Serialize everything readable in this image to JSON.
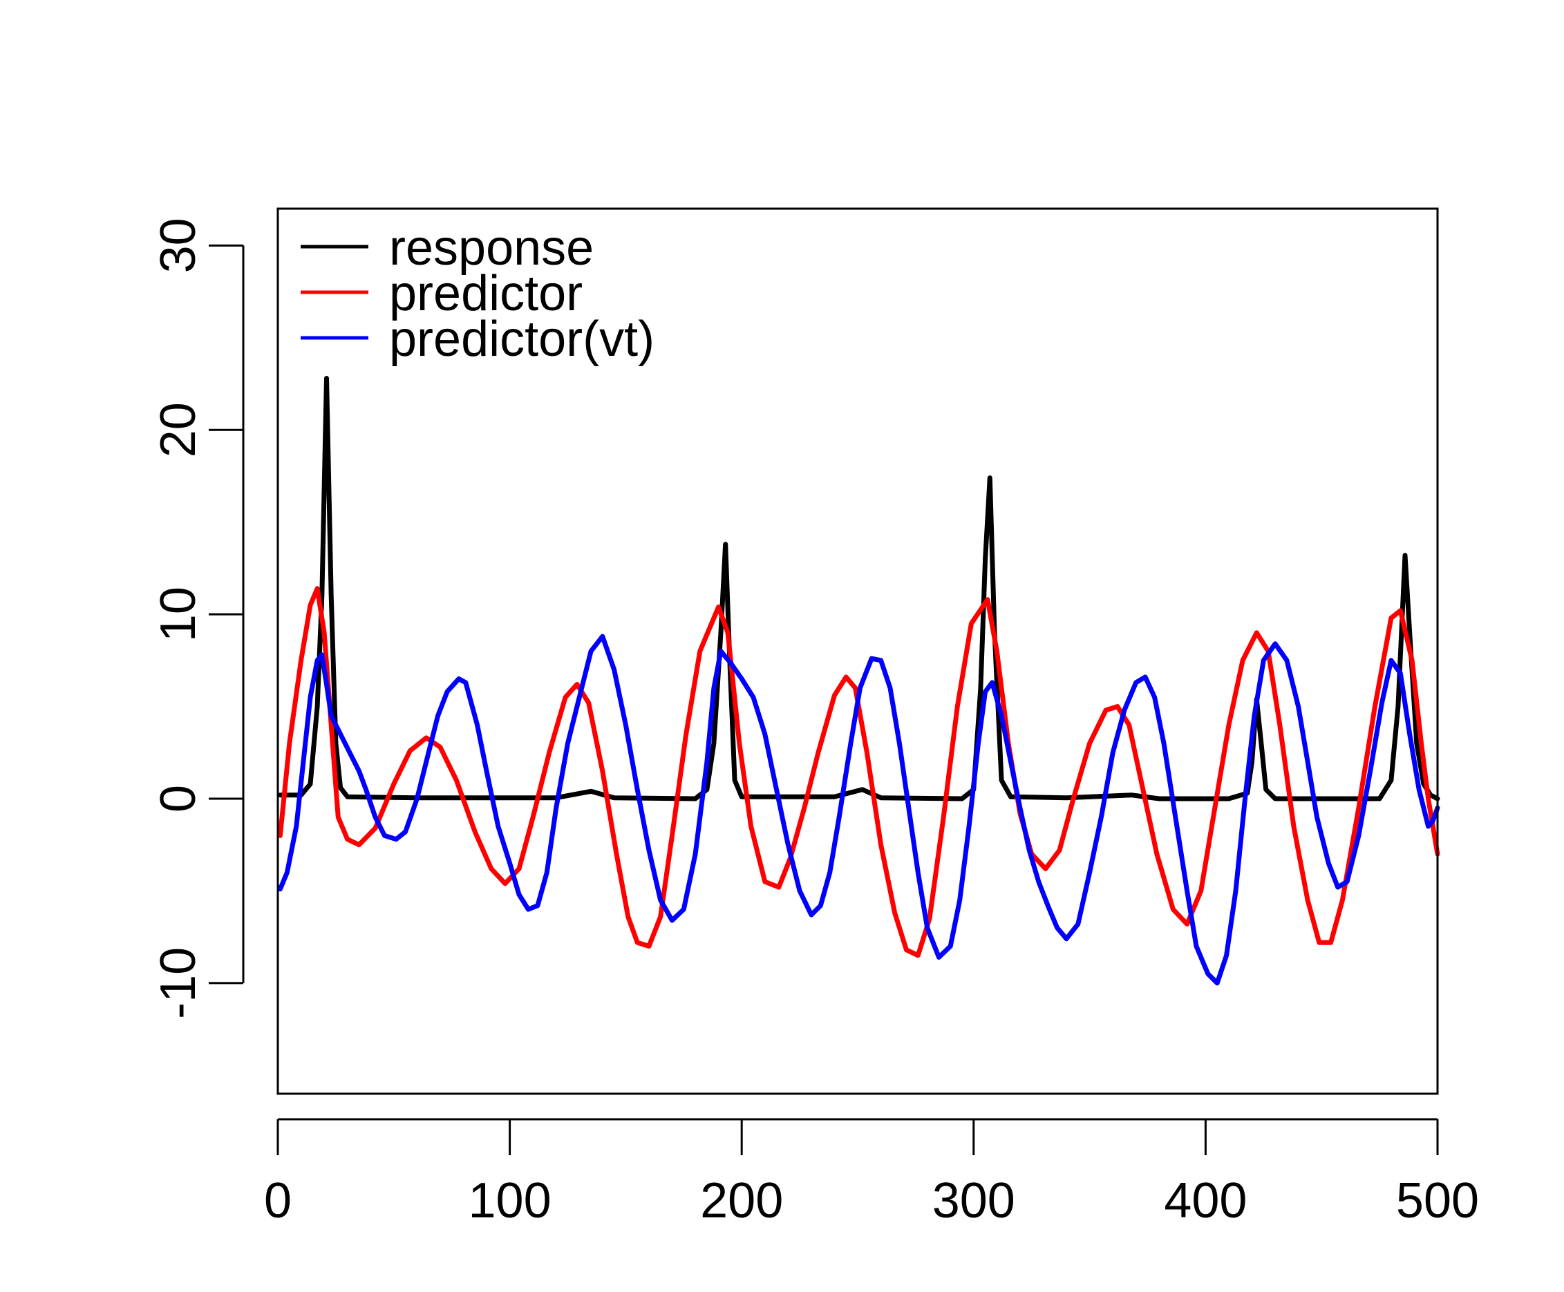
{
  "chart_data": {
    "type": "line",
    "title": "",
    "xlabel": "",
    "ylabel": "",
    "xlim": [
      0,
      500
    ],
    "ylim": [
      -16,
      32
    ],
    "x_ticks": [
      0,
      100,
      200,
      300,
      400,
      500
    ],
    "x_tick_labels": [
      "0",
      "100",
      "200",
      "300",
      "400",
      "500"
    ],
    "y_ticks": [
      -10,
      0,
      10,
      20,
      30
    ],
    "y_tick_labels": [
      "-10",
      "0",
      "10",
      "20",
      "30"
    ],
    "grid": false,
    "legend": {
      "placement": "top-left",
      "entries": [
        {
          "label": "response",
          "color": "#000000"
        },
        {
          "label": "predictor",
          "color": "#ff0000"
        },
        {
          "label": "predictor(vt)",
          "color": "#0000ff"
        }
      ]
    },
    "series": [
      {
        "name": "response",
        "color": "#000000",
        "points": [
          [
            1,
            0.2
          ],
          [
            10,
            0.2
          ],
          [
            14,
            0.8
          ],
          [
            17,
            5
          ],
          [
            19,
            11
          ],
          [
            21,
            22.8
          ],
          [
            23,
            11
          ],
          [
            25,
            3
          ],
          [
            27,
            0.6
          ],
          [
            30,
            0.1
          ],
          [
            60,
            0.05
          ],
          [
            120,
            0.05
          ],
          [
            135,
            0.4
          ],
          [
            145,
            0.05
          ],
          [
            180,
            0
          ],
          [
            185,
            0.5
          ],
          [
            188,
            3
          ],
          [
            191,
            9
          ],
          [
            193,
            13.8
          ],
          [
            195,
            7
          ],
          [
            197,
            1
          ],
          [
            200,
            0.1
          ],
          [
            240,
            0.1
          ],
          [
            252,
            0.5
          ],
          [
            260,
            0.05
          ],
          [
            295,
            0
          ],
          [
            300,
            0.5
          ],
          [
            303,
            6
          ],
          [
            305,
            13
          ],
          [
            307,
            17.4
          ],
          [
            309,
            9
          ],
          [
            312,
            1
          ],
          [
            316,
            0.1
          ],
          [
            340,
            0.05
          ],
          [
            368,
            0.2
          ],
          [
            380,
            0
          ],
          [
            410,
            0
          ],
          [
            418,
            0.3
          ],
          [
            420,
            2
          ],
          [
            422,
            5.4
          ],
          [
            424,
            3
          ],
          [
            426,
            0.5
          ],
          [
            430,
            0
          ],
          [
            475,
            0
          ],
          [
            480,
            1
          ],
          [
            483,
            5
          ],
          [
            486,
            13.2
          ],
          [
            488,
            9
          ],
          [
            491,
            3
          ],
          [
            494,
            0.8
          ],
          [
            497,
            0.2
          ],
          [
            500,
            0
          ]
        ]
      },
      {
        "name": "predictor",
        "color": "#ff0000",
        "points": [
          [
            1,
            -2
          ],
          [
            5,
            3
          ],
          [
            10,
            7.5
          ],
          [
            14,
            10.5
          ],
          [
            17,
            11.4
          ],
          [
            20,
            9
          ],
          [
            23,
            4
          ],
          [
            26,
            -1
          ],
          [
            30,
            -2.2
          ],
          [
            35,
            -2.5
          ],
          [
            42,
            -1.6
          ],
          [
            50,
            0.8
          ],
          [
            57,
            2.6
          ],
          [
            64,
            3.3
          ],
          [
            70,
            2.8
          ],
          [
            77,
            1
          ],
          [
            85,
            -1.8
          ],
          [
            92,
            -3.8
          ],
          [
            98,
            -4.6
          ],
          [
            104,
            -3.8
          ],
          [
            110,
            -1
          ],
          [
            117,
            2.5
          ],
          [
            124,
            5.5
          ],
          [
            129,
            6.2
          ],
          [
            134,
            5.2
          ],
          [
            140,
            1.5
          ],
          [
            146,
            -3
          ],
          [
            151,
            -6.4
          ],
          [
            155,
            -7.8
          ],
          [
            160,
            -8
          ],
          [
            165,
            -6.4
          ],
          [
            170,
            -2
          ],
          [
            176,
            3.5
          ],
          [
            182,
            8
          ],
          [
            190,
            10.4
          ],
          [
            194,
            9
          ],
          [
            199,
            3
          ],
          [
            204,
            -1.5
          ],
          [
            210,
            -4.5
          ],
          [
            216,
            -4.8
          ],
          [
            221,
            -3.2
          ],
          [
            227,
            -0.5
          ],
          [
            233,
            2.5
          ],
          [
            240,
            5.6
          ],
          [
            245,
            6.6
          ],
          [
            249,
            6
          ],
          [
            254,
            2.5
          ],
          [
            260,
            -2.5
          ],
          [
            266,
            -6.2
          ],
          [
            271,
            -8.2
          ],
          [
            276,
            -8.5
          ],
          [
            281,
            -6.5
          ],
          [
            287,
            -1
          ],
          [
            293,
            5
          ],
          [
            299,
            9.5
          ],
          [
            306,
            10.8
          ],
          [
            310,
            8
          ],
          [
            315,
            3
          ],
          [
            320,
            -0.8
          ],
          [
            325,
            -3
          ],
          [
            331,
            -3.8
          ],
          [
            337,
            -2.8
          ],
          [
            343,
            0
          ],
          [
            350,
            3
          ],
          [
            357,
            4.8
          ],
          [
            362,
            5
          ],
          [
            367,
            4
          ],
          [
            373,
            0.5
          ],
          [
            379,
            -3
          ],
          [
            386,
            -6
          ],
          [
            392,
            -6.8
          ],
          [
            398,
            -5
          ],
          [
            404,
            -0.5
          ],
          [
            410,
            4
          ],
          [
            416,
            7.5
          ],
          [
            422,
            9
          ],
          [
            427,
            8
          ],
          [
            432,
            4
          ],
          [
            438,
            -1.5
          ],
          [
            444,
            -5.5
          ],
          [
            449,
            -7.8
          ],
          [
            454,
            -7.8
          ],
          [
            459,
            -5.5
          ],
          [
            466,
            -0.5
          ],
          [
            473,
            5
          ],
          [
            480,
            9.8
          ],
          [
            484,
            10.2
          ],
          [
            489,
            7.5
          ],
          [
            493,
            3
          ],
          [
            496,
            0
          ],
          [
            500,
            -3
          ]
        ]
      },
      {
        "name": "predictor(vt)",
        "color": "#0000ff",
        "points": [
          [
            1,
            -4.9
          ],
          [
            4,
            -4
          ],
          [
            8,
            -1.5
          ],
          [
            11,
            2
          ],
          [
            14,
            5.5
          ],
          [
            17,
            7.5
          ],
          [
            19,
            7.8
          ],
          [
            21,
            6.2
          ],
          [
            23,
            4.5
          ],
          [
            27,
            3.5
          ],
          [
            31,
            2.5
          ],
          [
            35,
            1.5
          ],
          [
            38,
            0.5
          ],
          [
            42,
            -1
          ],
          [
            46,
            -2
          ],
          [
            51,
            -2.2
          ],
          [
            55,
            -1.8
          ],
          [
            60,
            0
          ],
          [
            65,
            2.5
          ],
          [
            69,
            4.5
          ],
          [
            73,
            5.8
          ],
          [
            78,
            6.5
          ],
          [
            81,
            6.3
          ],
          [
            86,
            4
          ],
          [
            90,
            1.5
          ],
          [
            95,
            -1.5
          ],
          [
            100,
            -3.5
          ],
          [
            104,
            -5.2
          ],
          [
            108,
            -6
          ],
          [
            112,
            -5.8
          ],
          [
            116,
            -4
          ],
          [
            120,
            -0.5
          ],
          [
            125,
            3
          ],
          [
            130,
            5.5
          ],
          [
            135,
            8
          ],
          [
            140,
            8.8
          ],
          [
            145,
            7
          ],
          [
            150,
            4
          ],
          [
            155,
            0.5
          ],
          [
            160,
            -2.8
          ],
          [
            165,
            -5.5
          ],
          [
            170,
            -6.6
          ],
          [
            175,
            -6
          ],
          [
            180,
            -3
          ],
          [
            185,
            2
          ],
          [
            188,
            6
          ],
          [
            191,
            8
          ],
          [
            195,
            7.4
          ],
          [
            200,
            6.5
          ],
          [
            205,
            5.5
          ],
          [
            210,
            3.5
          ],
          [
            215,
            0.5
          ],
          [
            220,
            -2.5
          ],
          [
            225,
            -5
          ],
          [
            230,
            -6.3
          ],
          [
            234,
            -5.8
          ],
          [
            238,
            -4
          ],
          [
            242,
            -1
          ],
          [
            247,
            3
          ],
          [
            251,
            6
          ],
          [
            256,
            7.6
          ],
          [
            260,
            7.5
          ],
          [
            264,
            6
          ],
          [
            268,
            3
          ],
          [
            272,
            -0.5
          ],
          [
            276,
            -4
          ],
          [
            280,
            -7
          ],
          [
            285,
            -8.6
          ],
          [
            290,
            -8
          ],
          [
            294,
            -5.5
          ],
          [
            298,
            -1.5
          ],
          [
            302,
            3
          ],
          [
            305,
            5.8
          ],
          [
            308,
            6.3
          ],
          [
            312,
            4.5
          ],
          [
            316,
            2
          ],
          [
            320,
            -0.5
          ],
          [
            324,
            -2.8
          ],
          [
            328,
            -4.5
          ],
          [
            332,
            -5.8
          ],
          [
            336,
            -7
          ],
          [
            340,
            -7.6
          ],
          [
            345,
            -6.8
          ],
          [
            350,
            -4
          ],
          [
            355,
            -1
          ],
          [
            360,
            2.5
          ],
          [
            365,
            4.8
          ],
          [
            370,
            6.3
          ],
          [
            374,
            6.6
          ],
          [
            378,
            5.5
          ],
          [
            382,
            3
          ],
          [
            387,
            -1
          ],
          [
            392,
            -5
          ],
          [
            396,
            -8
          ],
          [
            401,
            -9.5
          ],
          [
            405,
            -10
          ],
          [
            409,
            -8.5
          ],
          [
            413,
            -5
          ],
          [
            417,
            0
          ],
          [
            421,
            4.5
          ],
          [
            425,
            7.5
          ],
          [
            430,
            8.4
          ],
          [
            435,
            7.5
          ],
          [
            440,
            5
          ],
          [
            444,
            2
          ],
          [
            448,
            -1
          ],
          [
            453,
            -3.5
          ],
          [
            457,
            -4.8
          ],
          [
            461,
            -4.5
          ],
          [
            466,
            -2
          ],
          [
            471,
            1.5
          ],
          [
            476,
            5.2
          ],
          [
            480,
            7.5
          ],
          [
            484,
            6.8
          ],
          [
            488,
            3.5
          ],
          [
            492,
            0.5
          ],
          [
            496,
            -1.5
          ],
          [
            498,
            -1.2
          ],
          [
            500,
            -0.5
          ]
        ]
      }
    ]
  }
}
